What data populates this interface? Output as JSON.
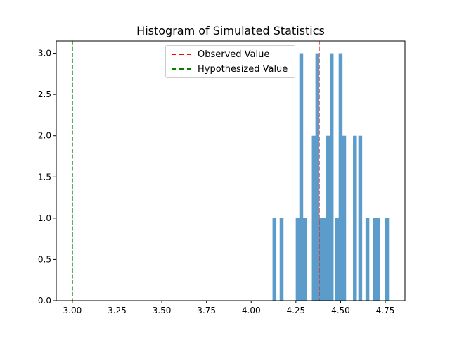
{
  "chart_data": {
    "type": "bar",
    "title": "Histogram of Simulated Statistics",
    "xlabel": "",
    "ylabel": "",
    "xlim": [
      2.91,
      4.86
    ],
    "ylim": [
      0,
      3.15
    ],
    "xticks": [
      "3.00",
      "3.25",
      "3.50",
      "3.75",
      "4.00",
      "4.25",
      "4.50",
      "4.75"
    ],
    "yticks": [
      "0.0",
      "0.5",
      "1.0",
      "1.5",
      "2.0",
      "2.5",
      "3.0"
    ],
    "bar_color": "#5b9cca",
    "bin_width": 0.0215,
    "bins": [
      {
        "x": 4.13,
        "count": 1
      },
      {
        "x": 4.17,
        "count": 1
      },
      {
        "x": 4.26,
        "count": 1
      },
      {
        "x": 4.28,
        "count": 3
      },
      {
        "x": 4.3,
        "count": 1
      },
      {
        "x": 4.35,
        "count": 2
      },
      {
        "x": 4.37,
        "count": 3
      },
      {
        "x": 4.39,
        "count": 1
      },
      {
        "x": 4.41,
        "count": 1
      },
      {
        "x": 4.43,
        "count": 2
      },
      {
        "x": 4.45,
        "count": 3
      },
      {
        "x": 4.48,
        "count": 1
      },
      {
        "x": 4.5,
        "count": 3
      },
      {
        "x": 4.52,
        "count": 2
      },
      {
        "x": 4.58,
        "count": 2
      },
      {
        "x": 4.61,
        "count": 2
      },
      {
        "x": 4.65,
        "count": 1
      },
      {
        "x": 4.69,
        "count": 1
      },
      {
        "x": 4.71,
        "count": 1
      },
      {
        "x": 4.76,
        "count": 1
      }
    ],
    "lines": [
      {
        "name": "Observed Value",
        "x": 4.38,
        "color": "#d62728",
        "legend_color": "#ff0000"
      },
      {
        "name": "Hypothesized Value",
        "x": 3.0,
        "color": "#008000",
        "legend_color": "#008000"
      }
    ],
    "legend": "top-center",
    "grid": false
  }
}
